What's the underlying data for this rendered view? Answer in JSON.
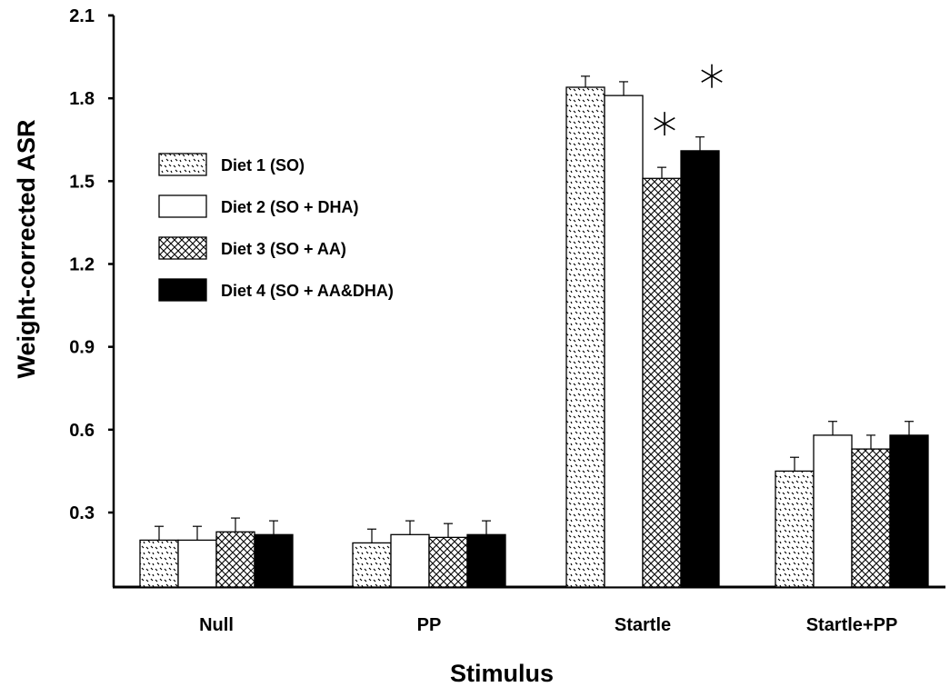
{
  "chart_data": {
    "type": "bar",
    "title": "",
    "xlabel": "Stimulus",
    "ylabel": "Weight-corrected ASR",
    "ylim": [
      0,
      2.1
    ],
    "yticks": [
      "0.3",
      "0.6",
      "0.9",
      "1.2",
      "1.5",
      "1.8",
      "2.1"
    ],
    "categories": [
      "Null",
      "PP",
      "Startle",
      "Startle+PP"
    ],
    "series": [
      {
        "name": "Diet 1 (SO)",
        "pattern": "dots",
        "values": [
          0.2,
          0.19,
          1.84,
          0.45
        ],
        "errors": [
          0.05,
          0.05,
          0.04,
          0.05
        ]
      },
      {
        "name": "Diet 2 (SO + DHA)",
        "pattern": "white",
        "values": [
          0.2,
          0.22,
          1.81,
          0.58
        ],
        "errors": [
          0.05,
          0.05,
          0.05,
          0.05
        ]
      },
      {
        "name": "Diet 3 (SO + AA)",
        "pattern": "crosshatch",
        "values": [
          0.23,
          0.21,
          1.51,
          0.53
        ],
        "errors": [
          0.05,
          0.05,
          0.04,
          0.05
        ]
      },
      {
        "name": "Diet 4 (SO + AA&DHA)",
        "pattern": "black",
        "values": [
          0.22,
          0.22,
          1.61,
          0.58
        ],
        "errors": [
          0.05,
          0.05,
          0.05,
          0.05
        ]
      }
    ],
    "annotations": [
      {
        "category": "Startle",
        "series": 2,
        "symbol": "significance-asterisk"
      },
      {
        "category": "Startle",
        "series": 3,
        "symbol": "significance-asterisk"
      }
    ],
    "grid": false,
    "legend_position": "upper-left"
  }
}
